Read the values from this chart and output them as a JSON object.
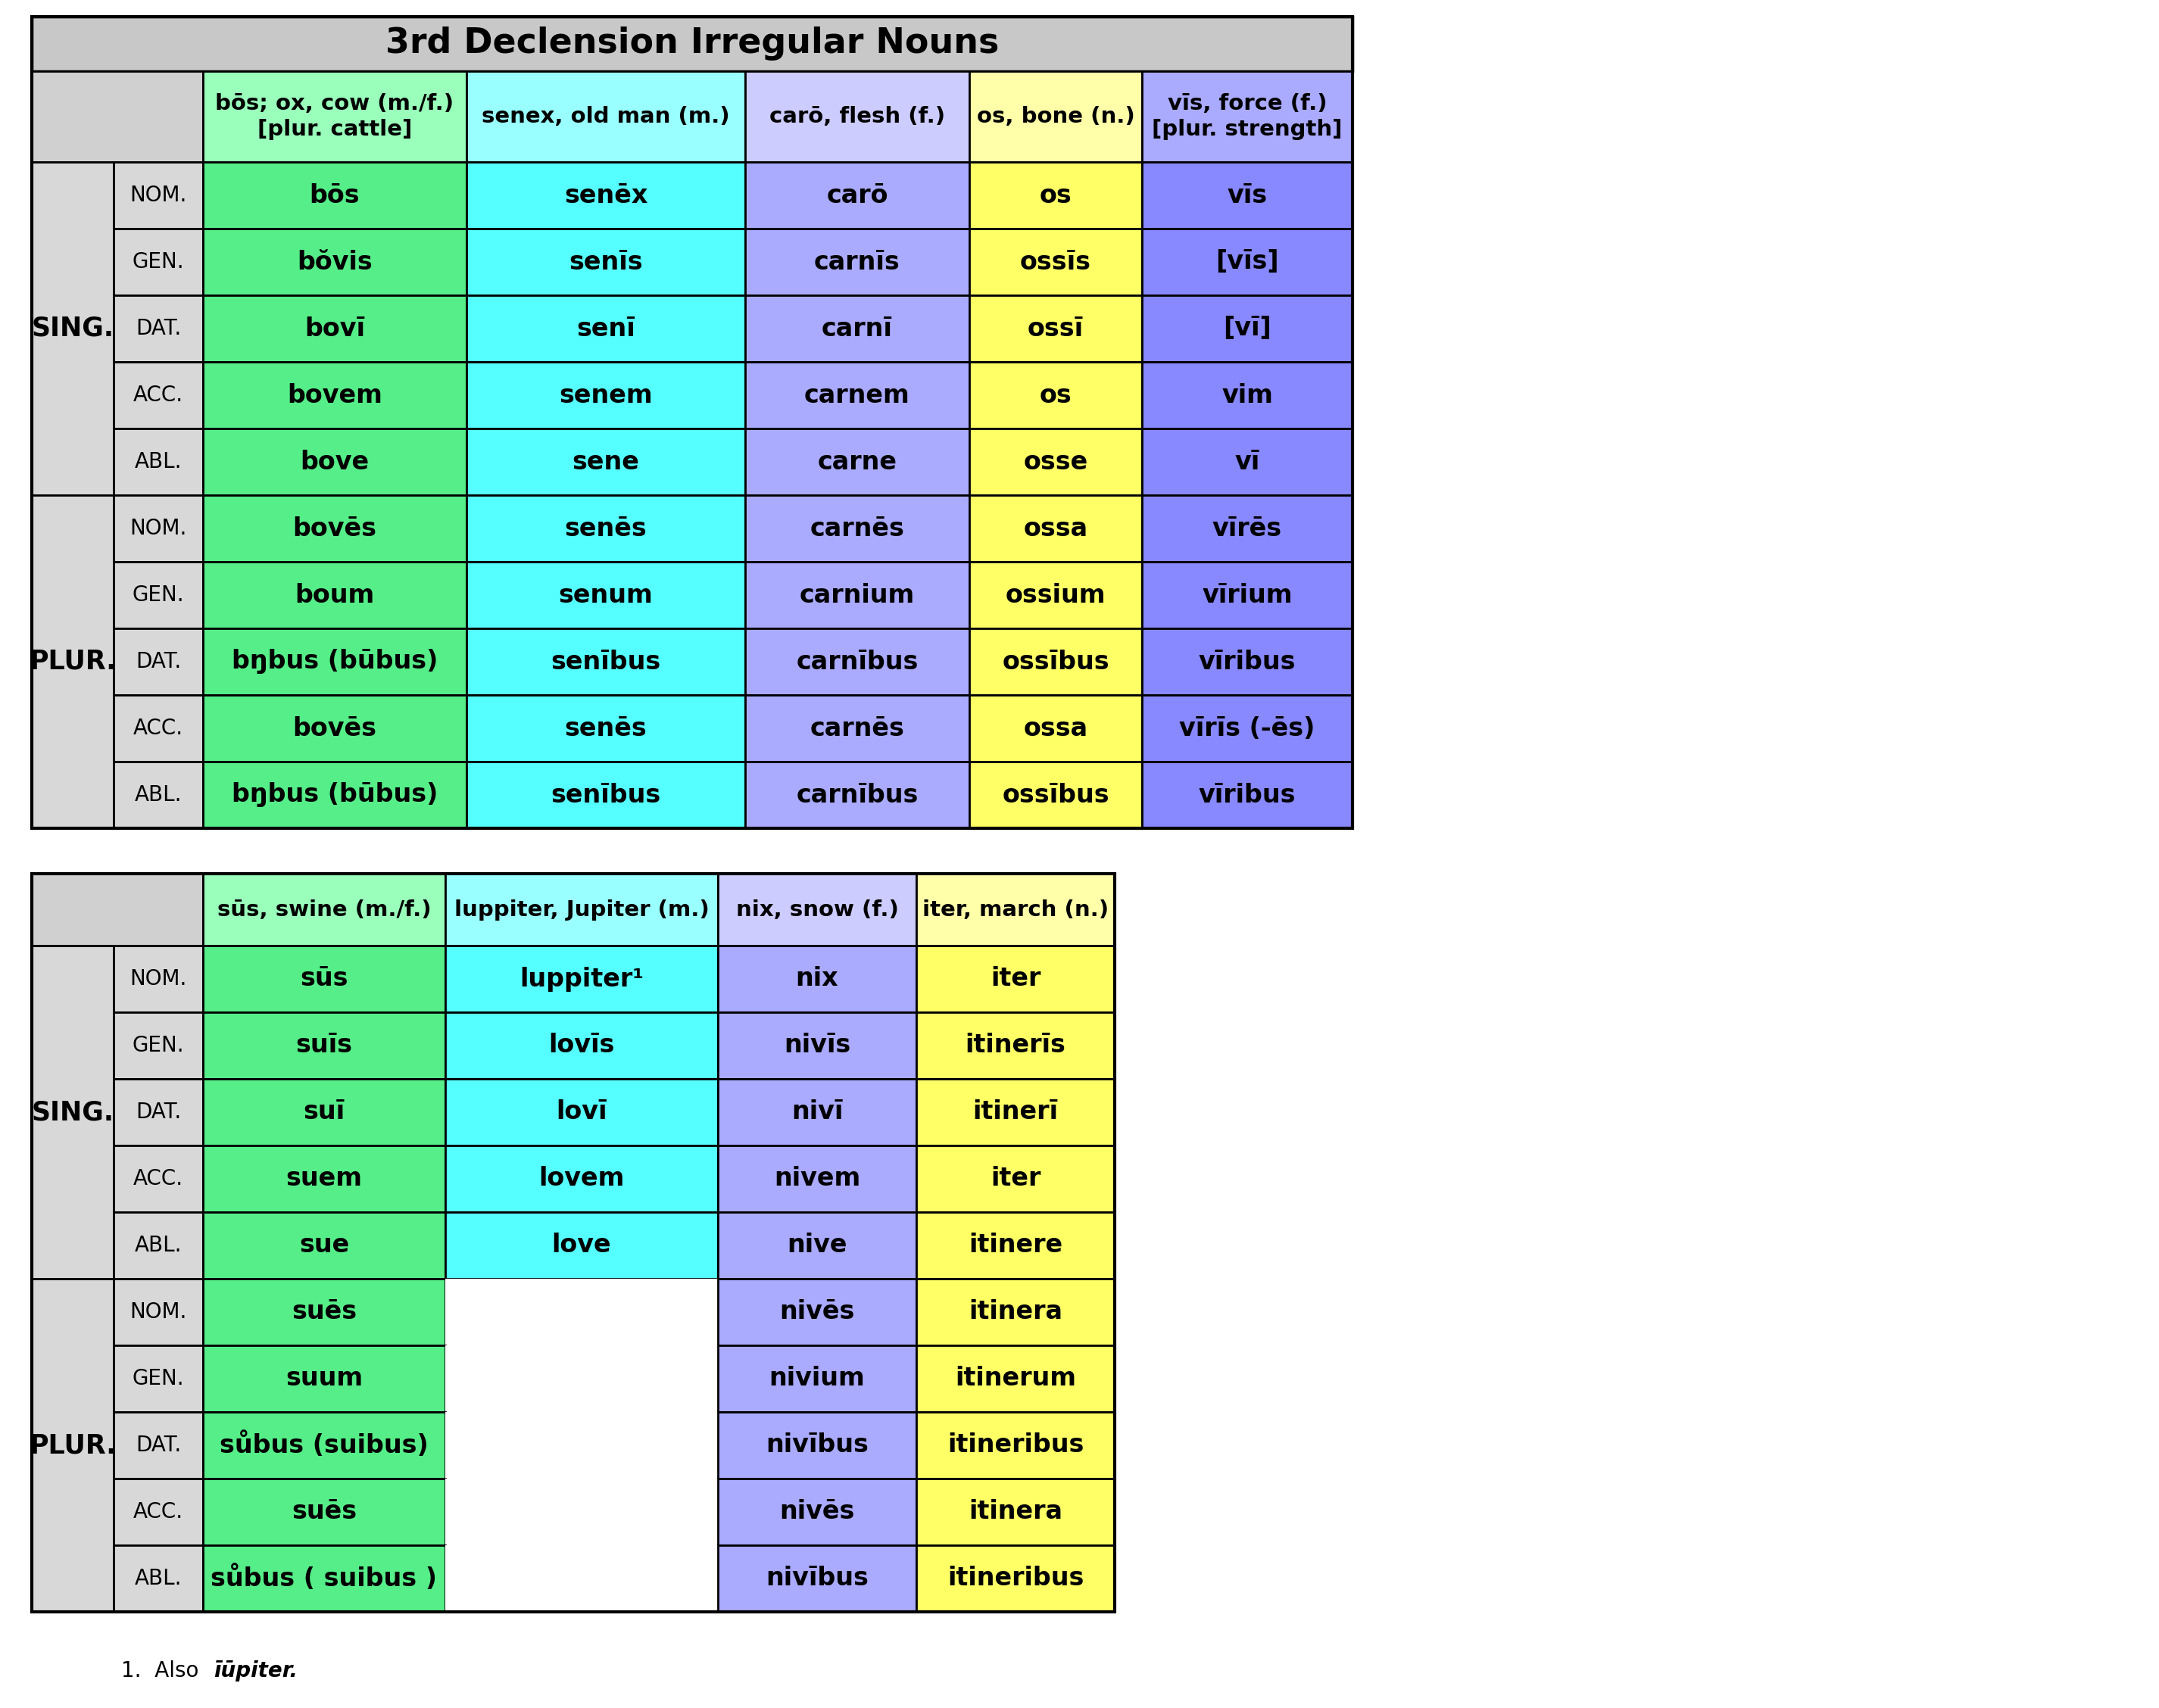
{
  "title": "3rd Declension Irregular Nouns",
  "title_bg": "#c8c8c8",
  "header_bg": "#d0d0d0",
  "label_bg": "#d8d8d8",
  "border_color": "#000000",
  "bg_color": "#ffffff",
  "t1_col_headers": [
    "bōs; ox, cow (m./f.)\n[plur. cattle]",
    "senex, old man (m.)",
    "carō, flesh (f.)",
    "os, bone (n.)",
    "vīs, force (f.)\n[plur. strength]"
  ],
  "t1_header_colors": [
    "#99ffbb",
    "#99ffff",
    "#ccccff",
    "#ffffaa",
    "#aaaaff"
  ],
  "t1_col_colors": [
    "#55ee88",
    "#55ffff",
    "#aaaaff",
    "#ffff66",
    "#8888ff"
  ],
  "t1_sing_cases": [
    "NOM.",
    "GEN.",
    "DAT.",
    "ACC.",
    "ABL."
  ],
  "t1_plur_cases": [
    "NOM.",
    "GEN.",
    "DAT.",
    "ACC.",
    "ABL."
  ],
  "t1_sing_data": [
    [
      "bōs",
      "senēx",
      "carō",
      "os",
      "vīs"
    ],
    [
      "bŏvis",
      "senīs",
      "carnīs",
      "ossīs",
      "[vīs]"
    ],
    [
      "bovī",
      "senī",
      "carnī",
      "ossī",
      "[vī]"
    ],
    [
      "bovem",
      "senem",
      "carnem",
      "os",
      "vim"
    ],
    [
      "bove",
      "sene",
      "carne",
      "osse",
      "vī"
    ]
  ],
  "t1_plur_data": [
    [
      "bovēs",
      "senēs",
      "carnēs",
      "ossa",
      "vīrēs"
    ],
    [
      "boum",
      "senum",
      "carnium",
      "ossium",
      "vīrium"
    ],
    [
      "bŋbus (būbus)",
      "senībus",
      "carnībus",
      "ossībus",
      "vīribus"
    ],
    [
      "bovēs",
      "senēs",
      "carnēs",
      "ossa",
      "vīrīs (-ēs)"
    ],
    [
      "bŋbus (būbus)",
      "senībus",
      "carnībus",
      "ossībus",
      "vīribus"
    ]
  ],
  "t2_col_headers": [
    "sūs, swine (m./f.)",
    "luppiter, Jupiter (m.)",
    "nix, snow (f.)",
    "iter, march (n.)"
  ],
  "t2_header_colors": [
    "#99ffbb",
    "#99ffff",
    "#ccccff",
    "#ffffaa"
  ],
  "t2_col_colors": [
    "#55ee88",
    "#55ffff",
    "#aaaaff",
    "#ffff66"
  ],
  "t2_sing_data": [
    [
      "sūs",
      "luppiter¹",
      "nix",
      "iter"
    ],
    [
      "suīs",
      "lovīs",
      "nivīs",
      "itinerīs"
    ],
    [
      "suī",
      "lovī",
      "nivī",
      "itinerī"
    ],
    [
      "suem",
      "lovem",
      "nivem",
      "iter"
    ],
    [
      "sue",
      "love",
      "nive",
      "itinere"
    ]
  ],
  "t2_plur_data": [
    [
      "suēs",
      "",
      "nivēs",
      "itinera"
    ],
    [
      "suum",
      "",
      "nivium",
      "itinerum"
    ],
    [
      "sůbus (suibus)",
      "",
      "nivībus",
      "itineribus"
    ],
    [
      "suēs",
      "",
      "nivēs",
      "itinera"
    ],
    [
      "sůbus ( suibus )",
      "",
      "nivībus",
      "itineribus"
    ]
  ],
  "footnote_normal": "1.  Also ",
  "footnote_italic_bold": "īūpiter."
}
